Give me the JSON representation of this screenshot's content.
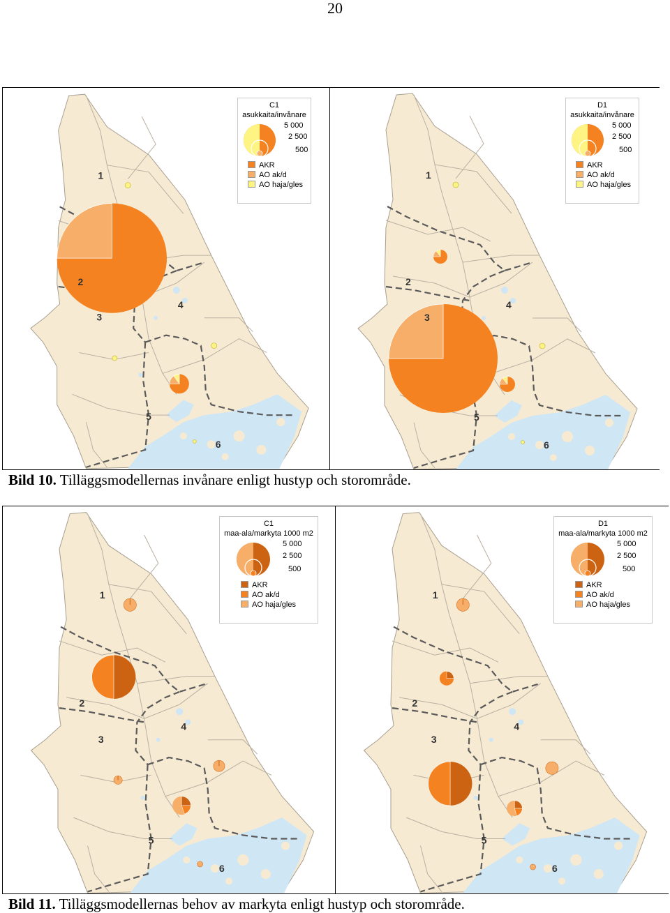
{
  "page_number": "20",
  "colors": {
    "land": "#f7ead2",
    "water": "#cfe6f5",
    "akr": "#f58220",
    "akr_dark": "#cc6312",
    "ao_ak": "#f7ae68",
    "ao_haja_yellow": "#fdf483",
    "boundary": "#555555",
    "road": "#b9b0a2"
  },
  "figure10": {
    "caption_label": "Bild 10.",
    "caption_text": "Tilläggsmodellernas invånare enligt hustyp och storområde.",
    "panels": [
      {
        "legend": {
          "title": "C1",
          "subtitle": "asukkaita/invånare",
          "scale": [
            "5 000",
            "2 500",
            "500"
          ],
          "items": [
            "AKR",
            "AO ak/d",
            "AO haja/gles"
          ]
        },
        "regions": [
          "1",
          "2",
          "3",
          "4",
          "5",
          "6"
        ]
      },
      {
        "legend": {
          "title": "D1",
          "subtitle": "asukkaita/invånare",
          "scale": [
            "5 000",
            "2 500",
            "500"
          ],
          "items": [
            "AKR",
            "AO ak/d",
            "AO haja/gles"
          ]
        },
        "regions": [
          "1",
          "2",
          "3",
          "4",
          "5",
          "6"
        ]
      }
    ]
  },
  "figure11": {
    "caption_label": "Bild 11.",
    "caption_text": "Tilläggsmodellernas behov av markyta enligt hustyp och storområde.",
    "panels": [
      {
        "legend": {
          "title": "C1",
          "subtitle": "maa-ala/markyta 1000 m2",
          "scale": [
            "5 000",
            "2 500",
            "500"
          ],
          "items": [
            "AKR",
            "AO ak/d",
            "AO haja/gles"
          ]
        },
        "regions": [
          "1",
          "2",
          "3",
          "4",
          "5",
          "6"
        ]
      },
      {
        "legend": {
          "title": "D1",
          "subtitle": "maa-ala/markyta 1000 m2",
          "scale": [
            "5 000",
            "2 500",
            "500"
          ],
          "items": [
            "AKR",
            "AO ak/d",
            "AO haja/gles"
          ]
        },
        "regions": [
          "1",
          "2",
          "3",
          "4",
          "5",
          "6"
        ]
      }
    ]
  }
}
